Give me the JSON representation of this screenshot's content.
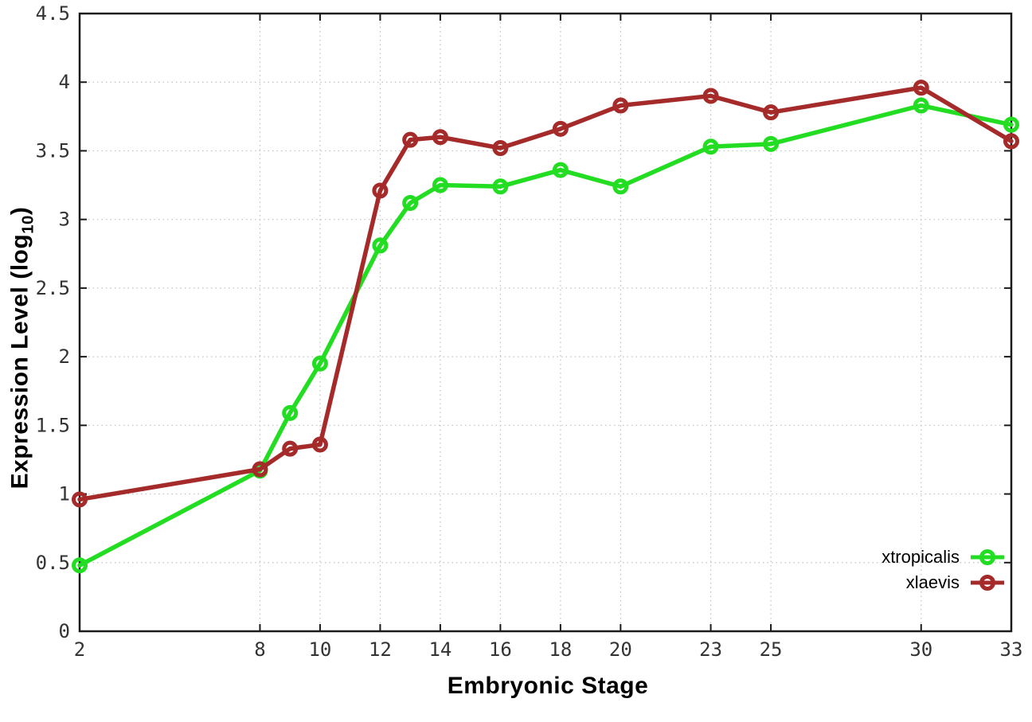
{
  "chart_data": {
    "type": "line",
    "title": "",
    "xlabel": "Embryonic Stage",
    "ylabel": {
      "main": "Expression Level (log",
      "sub": "10",
      "end": ")"
    },
    "xlim": [
      2,
      33
    ],
    "ylim": [
      0,
      4.5
    ],
    "x_ticks": [
      2,
      8,
      10,
      12,
      14,
      16,
      18,
      20,
      23,
      25,
      30,
      33
    ],
    "y_ticks": [
      0,
      0.5,
      1,
      1.5,
      2,
      2.5,
      3,
      3.5,
      4,
      4.5
    ],
    "grid": true,
    "legend_position": "bottom-right",
    "x": [
      2,
      8,
      9,
      10,
      12,
      13,
      14,
      16,
      18,
      20,
      23,
      25,
      30,
      33
    ],
    "series": [
      {
        "name": "xtropicalis",
        "color": "#22dd22",
        "values": [
          0.48,
          1.17,
          1.59,
          1.95,
          2.81,
          3.12,
          3.25,
          3.24,
          3.36,
          3.24,
          3.53,
          3.55,
          3.83,
          3.69
        ]
      },
      {
        "name": "xlaevis",
        "color": "#a52a2a",
        "values": [
          0.96,
          1.18,
          1.33,
          1.36,
          3.21,
          3.58,
          3.6,
          3.52,
          3.66,
          3.83,
          3.9,
          3.78,
          3.96,
          3.57
        ]
      }
    ],
    "style": {
      "grid_color": "#c0c0c0",
      "border_color": "#1a1a1a",
      "tick_label_color": "#333333"
    }
  }
}
